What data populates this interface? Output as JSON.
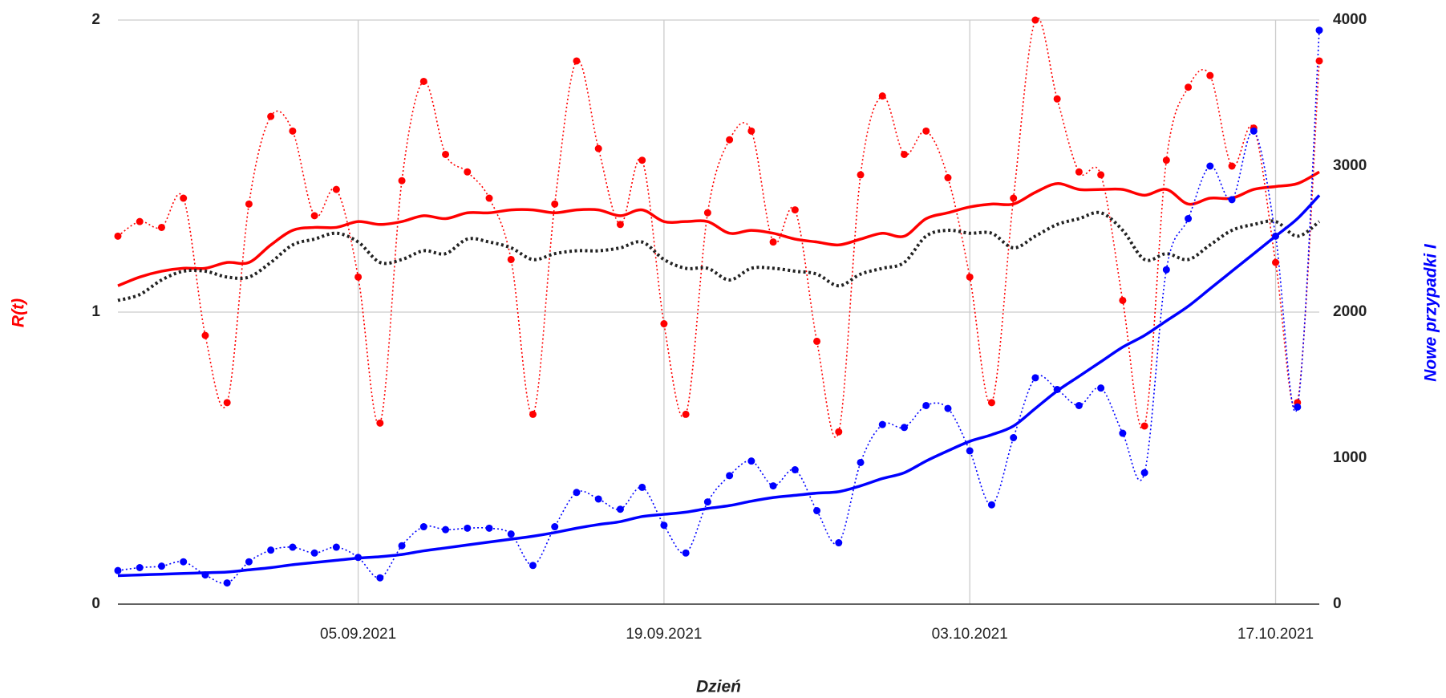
{
  "chart_data": {
    "type": "line",
    "xlabel": "Dzień",
    "ylabel": "R(t)",
    "y2label": "Nowe przypadki I",
    "x": [
      "2021-08-25",
      "2021-08-26",
      "2021-08-27",
      "2021-08-28",
      "2021-08-29",
      "2021-08-30",
      "2021-08-31",
      "2021-09-01",
      "2021-09-02",
      "2021-09-03",
      "2021-09-04",
      "2021-09-05",
      "2021-09-06",
      "2021-09-07",
      "2021-09-08",
      "2021-09-09",
      "2021-09-10",
      "2021-09-11",
      "2021-09-12",
      "2021-09-13",
      "2021-09-14",
      "2021-09-15",
      "2021-09-16",
      "2021-09-17",
      "2021-09-18",
      "2021-09-19",
      "2021-09-20",
      "2021-09-21",
      "2021-09-22",
      "2021-09-23",
      "2021-09-24",
      "2021-09-25",
      "2021-09-26",
      "2021-09-27",
      "2021-09-28",
      "2021-09-29",
      "2021-09-30",
      "2021-10-01",
      "2021-10-02",
      "2021-10-03",
      "2021-10-04",
      "2021-10-05",
      "2021-10-06",
      "2021-10-07",
      "2021-10-08",
      "2021-10-09",
      "2021-10-10",
      "2021-10-11",
      "2021-10-12",
      "2021-10-13",
      "2021-10-14",
      "2021-10-15",
      "2021-10-16",
      "2021-10-17",
      "2021-10-18",
      "2021-10-19"
    ],
    "xlim": [
      "2021-08-25",
      "2021-10-19"
    ],
    "xticks": [
      {
        "value": "2021-09-05",
        "label": "05.09.2021"
      },
      {
        "value": "2021-09-19",
        "label": "19.09.2021"
      },
      {
        "value": "2021-10-03",
        "label": "03.10.2021"
      },
      {
        "value": "2021-10-17",
        "label": "17.10.2021"
      }
    ],
    "ylim": [
      0,
      2
    ],
    "yticks": [
      0,
      1,
      2
    ],
    "y2lim": [
      0,
      4000
    ],
    "y2ticks": [
      0,
      1000,
      2000,
      3000,
      4000
    ],
    "grid": true,
    "series": [
      {
        "color": "#ff0000",
        "line": "dotted",
        "markers": true,
        "axis": "y",
        "values": [
          1.26,
          1.31,
          1.29,
          1.39,
          0.92,
          0.69,
          1.37,
          1.67,
          1.62,
          1.33,
          1.42,
          1.12,
          0.62,
          1.45,
          1.79,
          1.54,
          1.48,
          1.39,
          1.18,
          0.65,
          1.37,
          1.86,
          1.56,
          1.3,
          1.52,
          0.96,
          0.65,
          1.34,
          1.59,
          1.62,
          1.24,
          1.35,
          0.9,
          0.59,
          1.47,
          1.74,
          1.54,
          1.62,
          1.46,
          1.12,
          0.69,
          1.39,
          2.0,
          1.73,
          1.48,
          1.47,
          1.04,
          0.61,
          1.52,
          1.77,
          1.81,
          1.5,
          1.63,
          1.17,
          0.69,
          1.86
        ]
      },
      {
        "color": "#ff0000",
        "line": "solid",
        "markers": false,
        "axis": "y",
        "values": [
          1.09,
          1.12,
          1.14,
          1.15,
          1.15,
          1.17,
          1.17,
          1.23,
          1.28,
          1.29,
          1.29,
          1.31,
          1.3,
          1.31,
          1.33,
          1.32,
          1.34,
          1.34,
          1.35,
          1.35,
          1.34,
          1.35,
          1.35,
          1.33,
          1.35,
          1.31,
          1.31,
          1.31,
          1.27,
          1.28,
          1.27,
          1.25,
          1.24,
          1.23,
          1.25,
          1.27,
          1.26,
          1.32,
          1.34,
          1.36,
          1.37,
          1.37,
          1.41,
          1.44,
          1.42,
          1.42,
          1.42,
          1.4,
          1.42,
          1.37,
          1.39,
          1.39,
          1.42,
          1.43,
          1.44,
          1.48
        ]
      },
      {
        "color": "#222222",
        "line": "dotted",
        "markers": false,
        "axis": "y",
        "values": [
          1.04,
          1.06,
          1.11,
          1.14,
          1.14,
          1.12,
          1.12,
          1.17,
          1.23,
          1.25,
          1.27,
          1.24,
          1.17,
          1.18,
          1.21,
          1.2,
          1.25,
          1.24,
          1.22,
          1.18,
          1.2,
          1.21,
          1.21,
          1.22,
          1.24,
          1.18,
          1.15,
          1.15,
          1.11,
          1.15,
          1.15,
          1.14,
          1.13,
          1.09,
          1.13,
          1.15,
          1.17,
          1.26,
          1.28,
          1.27,
          1.27,
          1.22,
          1.26,
          1.3,
          1.32,
          1.34,
          1.28,
          1.18,
          1.2,
          1.18,
          1.23,
          1.28,
          1.3,
          1.31,
          1.26,
          1.31
        ]
      },
      {
        "color": "#0000ff",
        "line": "dotted",
        "markers": true,
        "axis": "y2",
        "values": [
          230,
          250,
          260,
          290,
          200,
          145,
          290,
          370,
          390,
          350,
          390,
          320,
          180,
          400,
          530,
          510,
          520,
          520,
          480,
          265,
          530,
          765,
          720,
          650,
          800,
          540,
          350,
          700,
          880,
          980,
          810,
          920,
          640,
          420,
          970,
          1230,
          1210,
          1360,
          1340,
          1050,
          680,
          1140,
          1550,
          1470,
          1360,
          1480,
          1170,
          900,
          2290,
          2640,
          3000,
          2770,
          3240,
          2520,
          1350,
          3930
        ]
      },
      {
        "color": "#0000ff",
        "line": "solid",
        "markers": false,
        "axis": "y2",
        "values": [
          195,
          200,
          205,
          210,
          215,
          220,
          235,
          250,
          270,
          285,
          300,
          315,
          325,
          340,
          365,
          385,
          405,
          425,
          445,
          465,
          490,
          520,
          545,
          565,
          600,
          615,
          630,
          655,
          675,
          705,
          730,
          745,
          760,
          770,
          810,
          860,
          900,
          980,
          1050,
          1115,
          1160,
          1220,
          1340,
          1460,
          1560,
          1660,
          1760,
          1840,
          1940,
          2040,
          2160,
          2280,
          2400,
          2520,
          2640,
          2800
        ]
      }
    ]
  }
}
